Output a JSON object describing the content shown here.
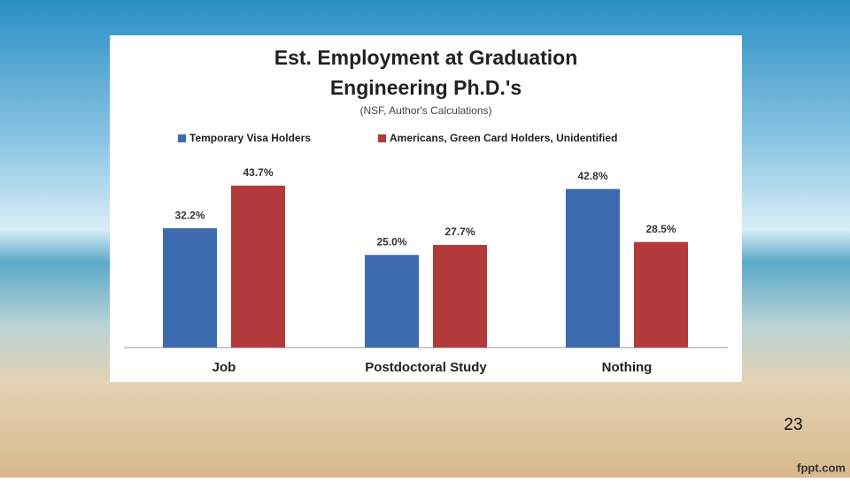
{
  "chart_data": {
    "type": "bar",
    "title": [
      "Est. Employment at Graduation",
      "Engineering Ph.D.'s"
    ],
    "subtitle": "(NSF, Author's Calculations)",
    "categories": [
      "Job",
      "Postdoctoral Study",
      "Nothing"
    ],
    "series": [
      {
        "name": "Temporary Visa Holders",
        "color": "#3d6bb0",
        "values": [
          32.2,
          25.0,
          42.8
        ],
        "value_labels": [
          "32.2%",
          "25.0%",
          "42.8%"
        ]
      },
      {
        "name": "Americans, Green Card Holders, Unidentified",
        "color": "#b23a3a",
        "values": [
          43.7,
          27.7,
          28.5
        ],
        "value_labels": [
          "43.7%",
          "27.7%",
          "28.5%"
        ]
      }
    ],
    "legend": "top"
  },
  "slide_number": "23",
  "footer": "fppt.com"
}
